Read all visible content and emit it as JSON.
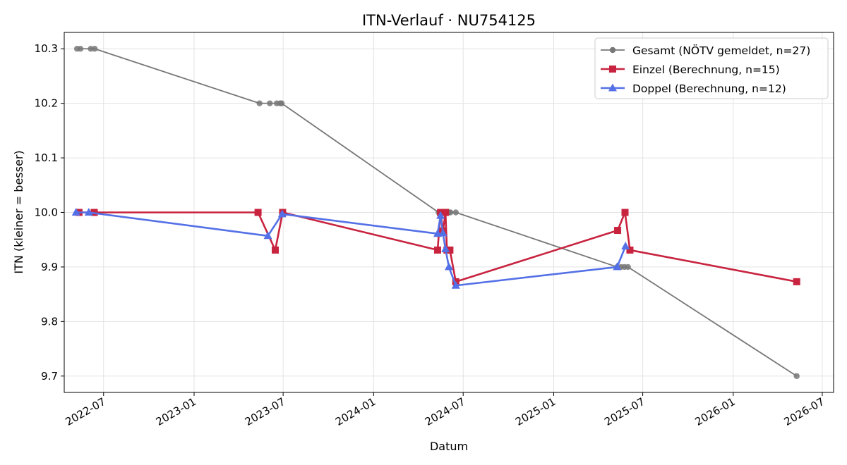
{
  "chart_data": {
    "type": "line",
    "title": "ITN-Verlauf · NU754125",
    "xlabel": "Datum",
    "ylabel": "ITN  (kleiner = besser)",
    "x_type": "date",
    "xlim": [
      "2022-04-12",
      "2026-07-24"
    ],
    "ylim": [
      9.67,
      10.33
    ],
    "x_ticks": [
      "2022-07-01",
      "2023-01-01",
      "2023-07-01",
      "2024-01-01",
      "2024-07-01",
      "2025-01-01",
      "2025-07-01",
      "2026-01-01",
      "2026-07-01"
    ],
    "x_tick_labels": [
      "2022-07",
      "2023-01",
      "2023-07",
      "2024-01",
      "2024-07",
      "2025-01",
      "2025-07",
      "2026-01",
      "2026-07"
    ],
    "y_ticks": [
      9.7,
      9.8,
      9.9,
      10.0,
      10.1,
      10.2,
      10.3
    ],
    "y_tick_labels": [
      "9.7",
      "9.8",
      "9.9",
      "10.0",
      "10.1",
      "10.2",
      "10.3"
    ],
    "grid": true,
    "legend_position": "top-right",
    "series": [
      {
        "name": "Gesamt (NÖTV gemeldet, n=27)",
        "color": "#777777",
        "marker": "circle",
        "x": [
          "2022-05-08",
          "2022-05-15",
          "2022-06-05",
          "2022-06-13",
          "2023-05-14",
          "2023-06-04",
          "2023-06-18",
          "2023-06-25",
          "2023-06-28",
          "2024-05-12",
          "2024-05-17",
          "2024-05-22",
          "2024-05-26",
          "2024-05-30",
          "2024-06-02",
          "2024-06-05",
          "2024-06-16",
          "2025-05-10",
          "2025-05-18",
          "2025-05-25",
          "2025-06-01",
          "2026-05-10"
        ],
        "y": [
          10.3,
          10.3,
          10.3,
          10.3,
          10.2,
          10.2,
          10.2,
          10.2,
          10.2,
          10.0,
          10.0,
          10.0,
          10.0,
          10.0,
          10.0,
          10.0,
          10.0,
          9.9,
          9.9,
          9.9,
          9.9,
          9.7
        ]
      },
      {
        "name": "Einzel (Berechnung, n=15)",
        "color": "#c8233f",
        "marker": "square",
        "x": [
          "2022-05-12",
          "2022-06-12",
          "2023-05-11",
          "2023-06-15",
          "2023-06-30",
          "2024-05-10",
          "2024-05-16",
          "2024-05-21",
          "2024-05-26",
          "2024-05-29",
          "2024-06-04",
          "2024-06-16",
          "2025-05-11",
          "2025-05-26",
          "2025-06-05",
          "2026-05-10"
        ],
        "y": [
          10.0,
          10.0,
          10.0,
          9.931,
          10.0,
          9.931,
          10.0,
          9.966,
          10.0,
          9.931,
          9.931,
          9.873,
          9.967,
          10.0,
          9.931,
          9.873
        ]
      },
      {
        "name": "Doppel (Berechnung, n=12)",
        "color": "#5470e6",
        "marker": "triangle",
        "x": [
          "2022-05-06",
          "2022-06-01",
          "2023-05-31",
          "2023-06-29",
          "2024-05-10",
          "2024-05-16",
          "2024-05-21",
          "2024-05-26",
          "2024-06-02",
          "2024-06-16",
          "2025-05-10",
          "2025-05-27"
        ],
        "y": [
          10.0,
          10.0,
          9.957,
          9.997,
          9.961,
          9.994,
          9.962,
          9.933,
          9.9,
          9.866,
          9.9,
          9.938
        ]
      }
    ]
  }
}
